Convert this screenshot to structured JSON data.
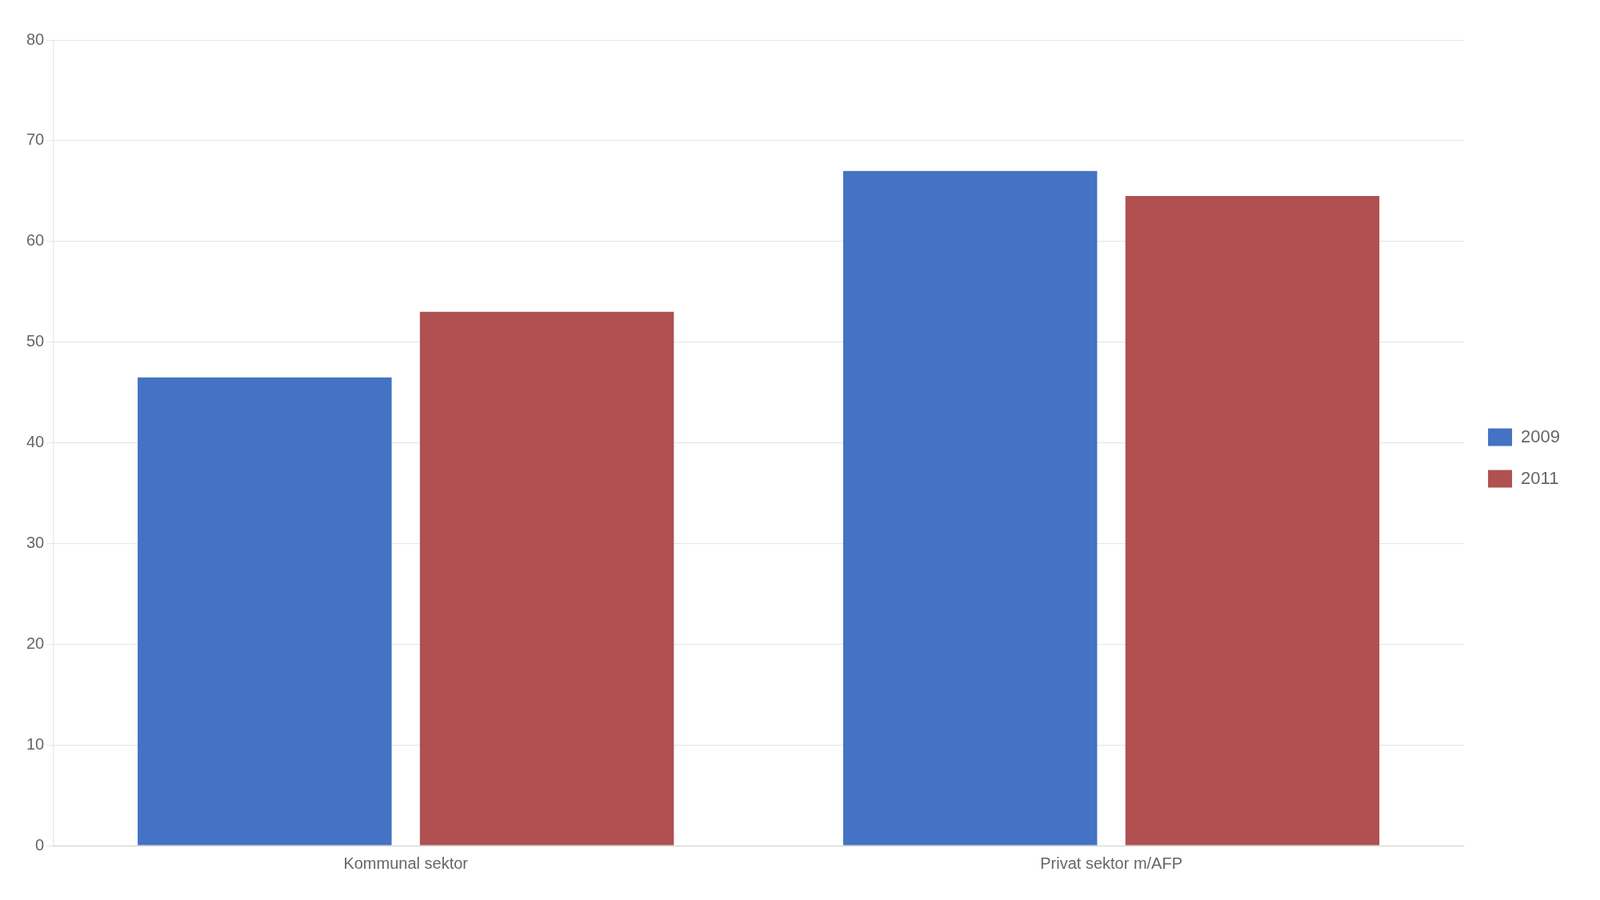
{
  "chart_data": {
    "type": "bar",
    "categories": [
      "Kommunal sektor",
      "Privat sektor m/AFP"
    ],
    "series": [
      {
        "name": "2009",
        "color": "#4472C4",
        "values": [
          46.5,
          67.0
        ]
      },
      {
        "name": "2011",
        "color": "#B05050",
        "values": [
          53.0,
          64.5
        ]
      }
    ],
    "ylim": [
      0,
      80
    ],
    "yticks": [
      0,
      10,
      20,
      30,
      40,
      50,
      60,
      70,
      80
    ],
    "grid": true,
    "legend": "right"
  }
}
